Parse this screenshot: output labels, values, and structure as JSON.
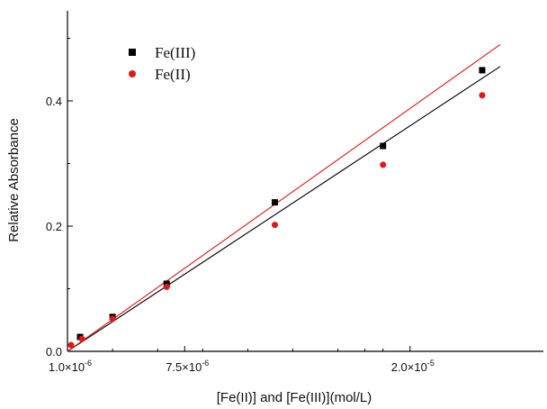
{
  "chart_data": {
    "type": "scatter",
    "title": "",
    "xlabel": "[Fe(II)] and [Fe(III)](mol/L)",
    "ylabel": "Relative Absorbance",
    "xlim": [
      1e-06,
      2.1e-05
    ],
    "ylim": [
      0,
      0.5
    ],
    "x_ticks": [
      {
        "value": 1e-06,
        "mantissa": "1.0",
        "exponent": "-6"
      },
      {
        "value": 7.5e-06,
        "mantissa": "7.5",
        "exponent": "-6"
      },
      {
        "value": 2e-05,
        "mantissa": "2.0",
        "exponent": "-5"
      }
    ],
    "x_minor_ticks": [
      3.5e-06,
      6e-06,
      8.5e-06,
      1.1e-05,
      1.35e-05,
      1.6e-05,
      1.75e-05,
      1.85e-05
    ],
    "y_ticks": [
      {
        "value": 0.0,
        "label": "0.0"
      },
      {
        "value": 0.2,
        "label": "0.2"
      },
      {
        "value": 0.4,
        "label": "0.4"
      }
    ],
    "y_minor_ticks": [
      0.1,
      0.3,
      0.5
    ],
    "grid": false,
    "legend_position": "top-left",
    "series": [
      {
        "name": "Fe(III)",
        "marker": "square",
        "color": "#000000",
        "points": [
          {
            "x": 1.7e-06,
            "y": 0.023
          },
          {
            "x": 3.5e-06,
            "y": 0.055
          },
          {
            "x": 6.5e-06,
            "y": 0.108
          },
          {
            "x": 1.25e-05,
            "y": 0.238
          },
          {
            "x": 1.85e-05,
            "y": 0.328
          },
          {
            "x": 2.4e-05,
            "y": 0.449
          }
        ],
        "fit": {
          "x0": 1e-06,
          "y0": 0.0,
          "x1": 2.5e-05,
          "y1": 0.455
        }
      },
      {
        "name": "Fe(II)",
        "marker": "circle",
        "color": "#e01818",
        "points": [
          {
            "x": 1.2e-06,
            "y": 0.01
          },
          {
            "x": 1.8e-06,
            "y": 0.02
          },
          {
            "x": 3.5e-06,
            "y": 0.052
          },
          {
            "x": 6.5e-06,
            "y": 0.103
          },
          {
            "x": 1.25e-05,
            "y": 0.202
          },
          {
            "x": 1.85e-05,
            "y": 0.298
          },
          {
            "x": 2.4e-05,
            "y": 0.409
          }
        ],
        "fit": {
          "x0": 1e-06,
          "y0": 0.0,
          "x1": 2.5e-05,
          "y1": 0.49
        }
      }
    ]
  }
}
